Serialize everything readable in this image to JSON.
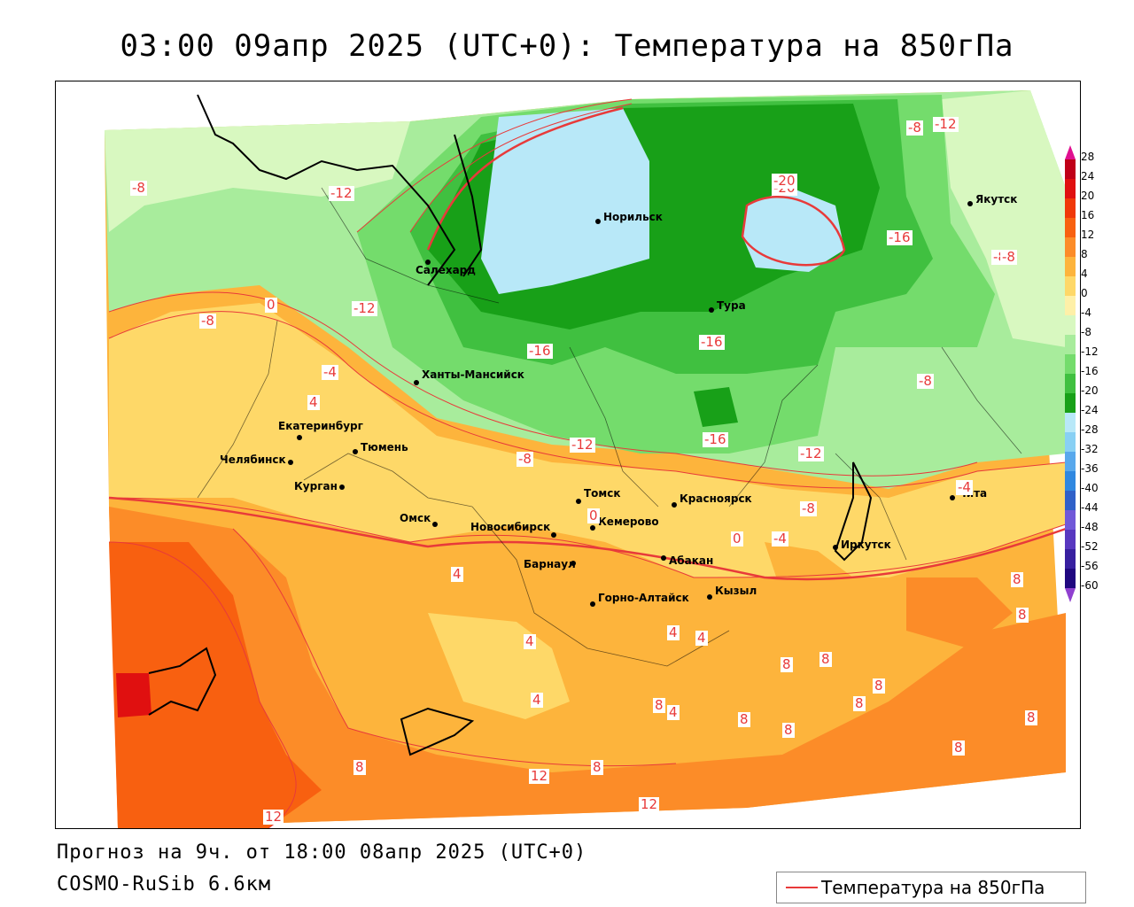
{
  "title": "03:00 09апр 2025 (UTC+0): Температура на 850гПа",
  "footer": {
    "forecast": "Прогноз на 9ч. от 18:00 08апр 2025 (UTC+0)",
    "model": "COSMO-RuSib 6.6км"
  },
  "legend": {
    "label": "Температура на 850гПа",
    "line_color": "#e83a3a"
  },
  "colorbar": {
    "ticks": [
      "28",
      "24",
      "20",
      "16",
      "12",
      "8",
      "4",
      "0",
      "-4",
      "-8",
      "-12",
      "-16",
      "-20",
      "-24",
      "-28",
      "-32",
      "-36",
      "-40",
      "-44",
      "-48",
      "-52",
      "-56",
      "-60"
    ],
    "colors": [
      "#c00018",
      "#e01010",
      "#f03808",
      "#f86010",
      "#fc8c28",
      "#fdb43c",
      "#fed868",
      "#fef0a8",
      "#d8f8c0",
      "#a8ec9c",
      "#74dc6c",
      "#40c040",
      "#18a018",
      "#b8e8f8",
      "#88d0f4",
      "#58a8ec",
      "#3088e0",
      "#3060c8",
      "#7058d8",
      "#5838c0",
      "#3820a0",
      "#200880"
    ]
  },
  "cities": [
    {
      "name": "Норильск"
    },
    {
      "name": "Якутск"
    },
    {
      "name": "Салехард"
    },
    {
      "name": "Тура"
    },
    {
      "name": "Ханты-Мансийск"
    },
    {
      "name": "Екатеринбург"
    },
    {
      "name": "Тюмень"
    },
    {
      "name": "Челябинск"
    },
    {
      "name": "Курган"
    },
    {
      "name": "Омск"
    },
    {
      "name": "Новосибирск"
    },
    {
      "name": "Томск"
    },
    {
      "name": "Кемерово"
    },
    {
      "name": "Красноярск"
    },
    {
      "name": "Барнаул"
    },
    {
      "name": "Абакан"
    },
    {
      "name": "Горно-Алтайск"
    },
    {
      "name": "Кызыл"
    },
    {
      "name": "Иркутск"
    },
    {
      "name": "Чита"
    }
  ],
  "contour_labels": [
    "-8",
    "-12",
    "-20",
    "-16",
    "-12",
    "-8",
    "-8",
    "-8",
    "-12",
    "-8",
    "0",
    "-4",
    "4",
    "-20",
    "-16",
    "-16",
    "-16",
    "-12",
    "-8",
    "-12",
    "-8",
    "-8",
    "-4",
    "0",
    "0",
    "-4",
    "4",
    "4",
    "4",
    "4",
    "8",
    "8",
    "8",
    "8",
    "8",
    "8",
    "8",
    "4",
    "4",
    "8",
    "8",
    "12",
    "8",
    "8",
    "8",
    "8",
    "12",
    "12"
  ]
}
